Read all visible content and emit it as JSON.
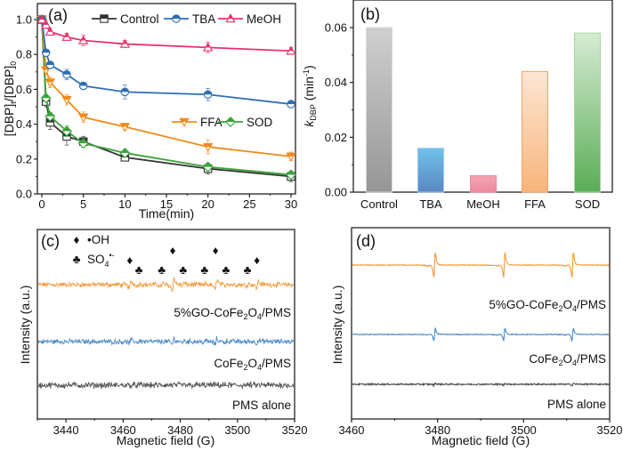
{
  "chart_data": [
    {
      "panel": "a",
      "type": "line",
      "panel_label": "(a)",
      "xlabel": "Time(min)",
      "ylabel": "[DBP]t/[DBP]0",
      "xlim": [
        -1,
        31
      ],
      "ylim": [
        0.0,
        1.07
      ],
      "xticks": [
        0,
        5,
        10,
        15,
        20,
        25,
        30
      ],
      "xtick_labels": [
        "0",
        "5",
        "10",
        "15",
        "20",
        "25",
        "30"
      ],
      "yticks": [
        0.0,
        0.2,
        0.4,
        0.6,
        0.8,
        1.0
      ],
      "ytick_labels": [
        "0.0",
        "0.2",
        "0.4",
        "0.6",
        "0.8",
        "1.0"
      ],
      "x": [
        0,
        0.5,
        1,
        3,
        5,
        10,
        20,
        30
      ],
      "series": [
        {
          "name": "Control",
          "color": "#333333",
          "marker": "square",
          "values": [
            1.0,
            0.53,
            0.41,
            0.33,
            0.3,
            0.21,
            0.145,
            0.1
          ],
          "errors": [
            0.01,
            0.03,
            0.04,
            0.05,
            0.03,
            0.02,
            0.03,
            0.03
          ]
        },
        {
          "name": "TBA",
          "color": "#2e6db3",
          "marker": "circle",
          "values": [
            1.0,
            0.81,
            0.74,
            0.685,
            0.62,
            0.585,
            0.57,
            0.515
          ],
          "errors": [
            0.01,
            0.02,
            0.02,
            0.03,
            0.02,
            0.04,
            0.035,
            0.02
          ]
        },
        {
          "name": "MeOH",
          "color": "#e8336a",
          "marker": "triangle-up",
          "values": [
            1.0,
            0.97,
            0.93,
            0.9,
            0.88,
            0.86,
            0.84,
            0.82
          ],
          "errors": [
            0.01,
            0.02,
            0.02,
            0.02,
            0.03,
            0.02,
            0.03,
            0.02
          ]
        },
        {
          "name": "FFA",
          "color": "#f08a1c",
          "marker": "triangle-down",
          "values": [
            1.0,
            0.71,
            0.64,
            0.54,
            0.44,
            0.385,
            0.27,
            0.215
          ],
          "errors": [
            0.01,
            0.02,
            0.03,
            0.03,
            0.03,
            0.02,
            0.04,
            0.025
          ]
        },
        {
          "name": "SOD",
          "color": "#3da33d",
          "marker": "diamond",
          "values": [
            1.0,
            0.55,
            0.445,
            0.36,
            0.29,
            0.235,
            0.155,
            0.11
          ],
          "errors": [
            0.01,
            0.02,
            0.02,
            0.03,
            0.02,
            0.02,
            0.02,
            0.02
          ]
        }
      ],
      "legend_placement": "top and middle-right"
    },
    {
      "panel": "b",
      "type": "bar",
      "panel_label": "(b)",
      "ylabel_main": "k",
      "ylabel_sub": "DBP",
      "ylabel_unit": " (min",
      "ylabel_sup": "-1",
      "ylabel_close": ")",
      "ylim": [
        0.0,
        0.07
      ],
      "yticks": [
        0.0,
        0.02,
        0.04,
        0.06
      ],
      "ytick_labels": [
        "0.00",
        "0.02",
        "0.04",
        "0.06"
      ],
      "categories": [
        "Control",
        "TBA",
        "MeOH",
        "FFA",
        "SOD"
      ],
      "values": [
        0.06,
        0.016,
        0.006,
        0.044,
        0.058
      ],
      "bar_gradients": [
        {
          "top": "#cfcfcf",
          "bottom": "#969696",
          "stroke": "#d8d8d8"
        },
        {
          "top": "#6fc1ea",
          "bottom": "#5a88c4",
          "stroke": "#9cc8ea"
        },
        {
          "top": "#f6a3b3",
          "bottom": "#ea8aa0",
          "stroke": "#f08aa0"
        },
        {
          "top": "#fde6d3",
          "bottom": "#f8b57a",
          "stroke": "#f3a565"
        },
        {
          "top": "#d6ebd3",
          "bottom": "#5aad56",
          "stroke": "#a8d6a4"
        }
      ]
    },
    {
      "panel": "c",
      "type": "line",
      "panel_label": "(c)",
      "xlabel": "Magnetic field (G)",
      "ylabel": "Intensity (a.u.)",
      "xlim": [
        3430,
        3520
      ],
      "xticks": [
        3440,
        3460,
        3480,
        3500,
        3520
      ],
      "xtick_labels": [
        "3440",
        "3460",
        "3480",
        "3500",
        "3520"
      ],
      "spectra": [
        {
          "name": "5%GO-CoFe2O4/PMS",
          "label_main": "5%GO-CoFe",
          "label_sub1": "2",
          "label_mid": "O",
          "label_sub2": "4",
          "label_end": "/PMS",
          "color": "#f39a3c",
          "noise": 0.9,
          "peak_scale": 1.0
        },
        {
          "name": "CoFe2O4/PMS",
          "label_main": "CoFe",
          "label_sub1": "2",
          "label_mid": "O",
          "label_sub2": "4",
          "label_end": "/PMS",
          "color": "#4a8ac9",
          "noise": 0.9,
          "peak_scale": 0.5
        },
        {
          "name": "PMS alone",
          "label_main": "PMS alone",
          "color": "#555555",
          "noise": 1.1,
          "peak_scale": 0.0
        }
      ],
      "oh_peaks_G": [
        3462.5,
        3477.5,
        3492.5,
        3507.0
      ],
      "so4_peaks_G": [
        3465.5,
        3473.5,
        3481.0,
        3488.5,
        3496.0,
        3503.5
      ],
      "legend": [
        {
          "symbol": "diamond",
          "label": "•OH",
          "color": "#3e3a8c"
        },
        {
          "symbol": "club",
          "label": "SO4•-",
          "label_main": "SO",
          "label_sub": "4",
          "label_sup": "•-",
          "color": "#5a8a3a"
        }
      ],
      "markers": {
        "oh_symbol": "♦",
        "so4_symbol": "♣"
      }
    },
    {
      "panel": "d",
      "type": "line",
      "panel_label": "(d)",
      "xlabel": "Magnetic field (G)",
      "ylabel": "Intensity (a.u.)",
      "xlim": [
        3460,
        3520
      ],
      "xticks": [
        3460,
        3480,
        3500,
        3520
      ],
      "xtick_labels": [
        "3460",
        "3480",
        "3500",
        "3520"
      ],
      "peaks_G": [
        3479.3,
        3495.5,
        3511.4
      ],
      "spectra": [
        {
          "name": "5%GO-CoFe2O4/PMS",
          "label_main": "5%GO-CoFe",
          "label_sub1": "2",
          "label_mid": "O",
          "label_sub2": "4",
          "label_end": "/PMS",
          "color": "#f39a3c",
          "peak_scale": 1.0
        },
        {
          "name": "CoFe2O4/PMS",
          "label_main": "CoFe",
          "label_sub1": "2",
          "label_mid": "O",
          "label_sub2": "4",
          "label_end": "/PMS",
          "color": "#4a8ac9",
          "peak_scale": 0.7
        },
        {
          "name": "PMS alone",
          "label_main": "PMS alone",
          "color": "#555555",
          "peak_scale": 0.08
        }
      ]
    }
  ]
}
